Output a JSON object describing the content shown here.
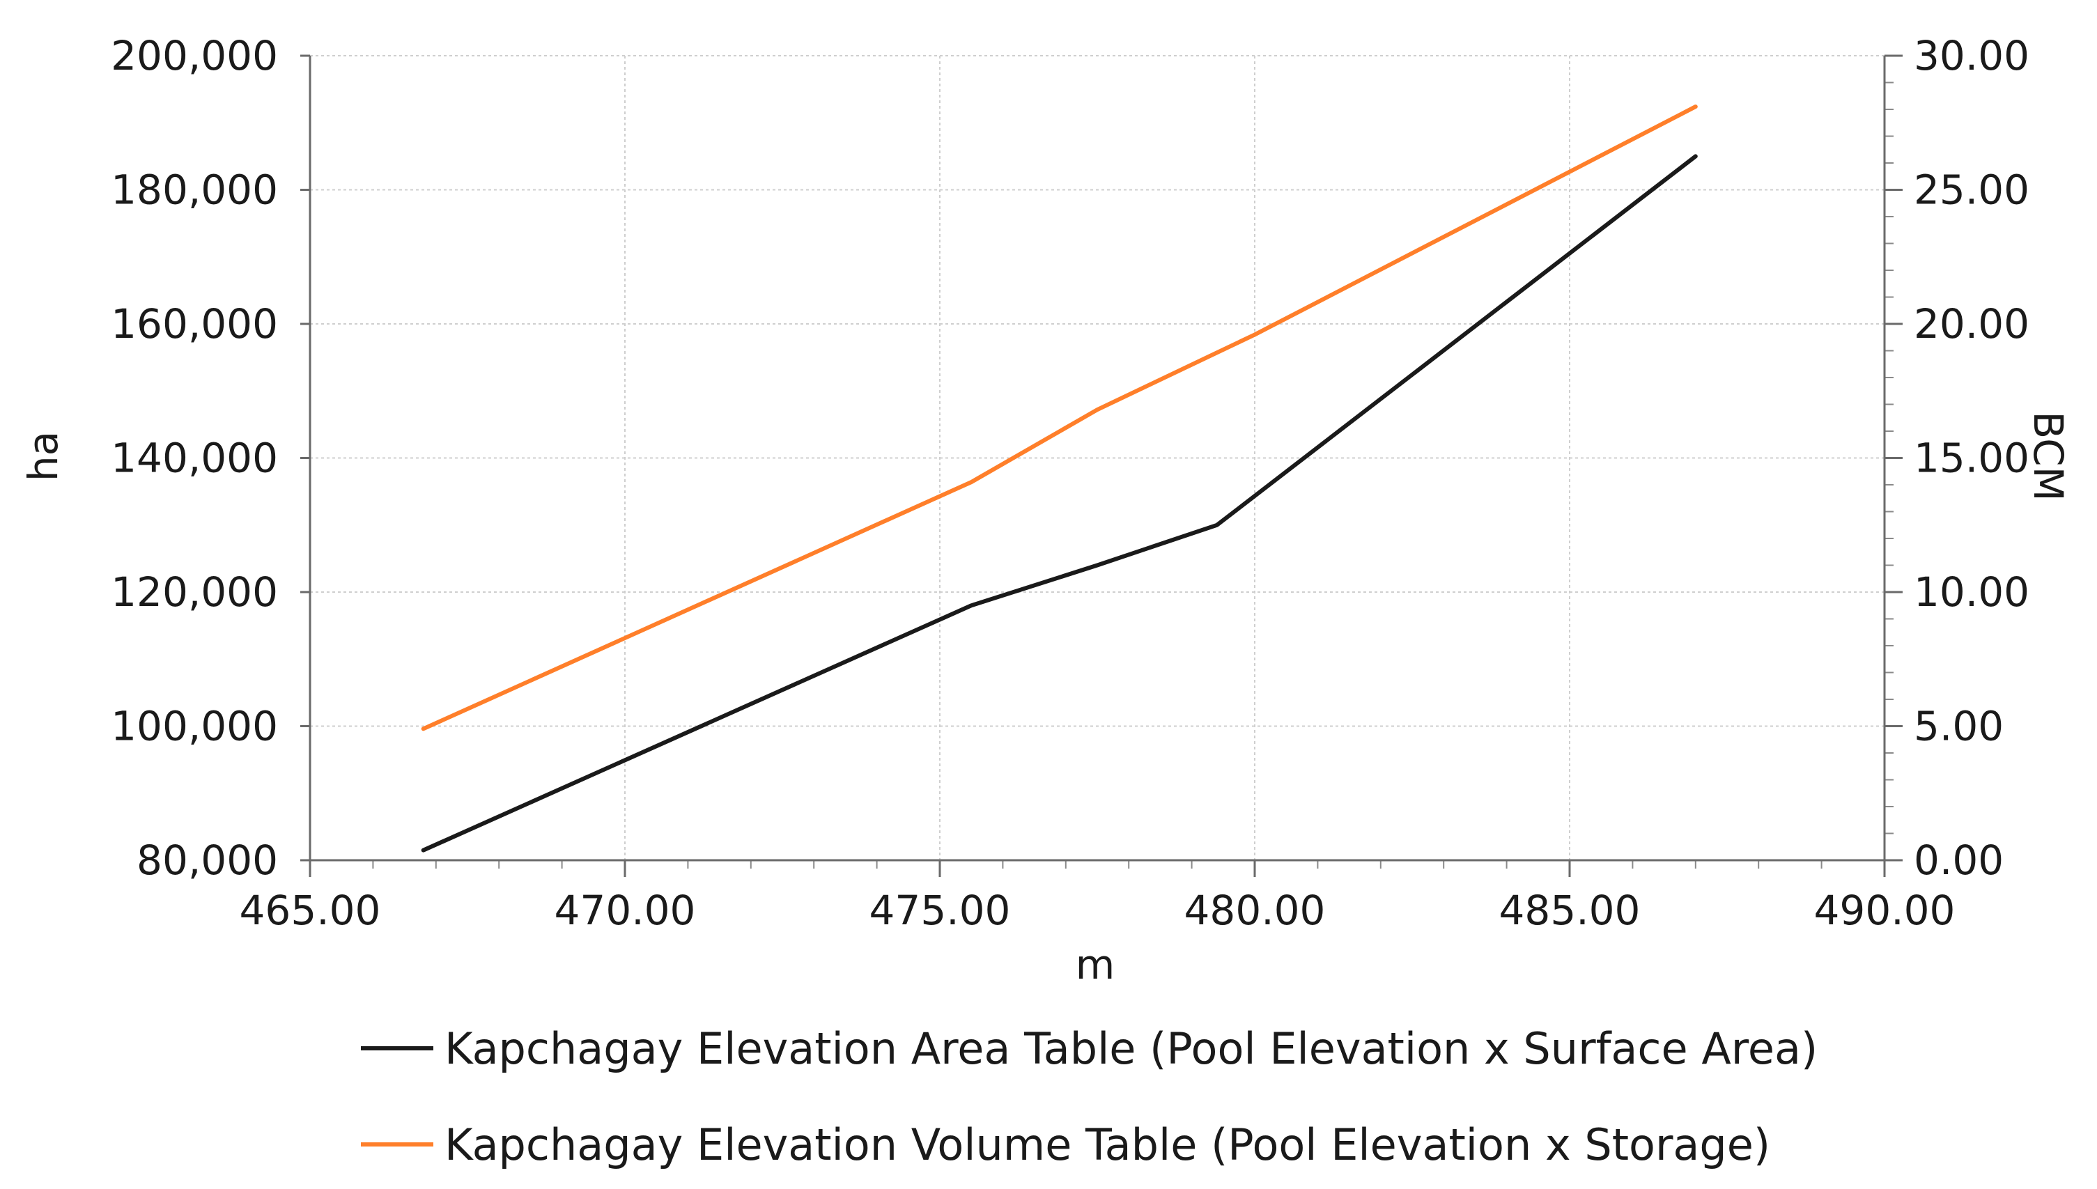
{
  "chart_data": {
    "type": "line",
    "xlabel": "m",
    "ylabel": "ha",
    "y2label": "BCM",
    "xlim": [
      465,
      490
    ],
    "ylim": [
      80000,
      200000
    ],
    "y2lim": [
      0,
      30
    ],
    "x_ticks": [
      "465.00",
      "470.00",
      "475.00",
      "480.00",
      "485.00",
      "490.00"
    ],
    "y_ticks": [
      "80,000",
      "100,000",
      "120,000",
      "140,000",
      "160,000",
      "180,000",
      "200,000"
    ],
    "y2_ticks": [
      "0.00",
      "5.00",
      "10.00",
      "15.00",
      "20.00",
      "25.00",
      "30.00"
    ],
    "grid": true,
    "legend_position": "bottom",
    "series": [
      {
        "name": "Kapchagay Elevation Area Table (Pool Elevation x Surface Area)",
        "axis": "left",
        "color": "#1a1a1a",
        "x": [
          466.8,
          475.5,
          477.5,
          479.4,
          487.0
        ],
        "y": [
          81500,
          118000,
          124000,
          130000,
          185000
        ]
      },
      {
        "name": "Kapchagay Elevation Volume Table (Pool Elevation x Storage)",
        "axis": "right",
        "color": "#ff7f2a",
        "x": [
          466.8,
          475.5,
          477.5,
          480.0,
          487.0
        ],
        "y": [
          4.9,
          14.1,
          16.8,
          19.6,
          28.1
        ]
      }
    ]
  }
}
